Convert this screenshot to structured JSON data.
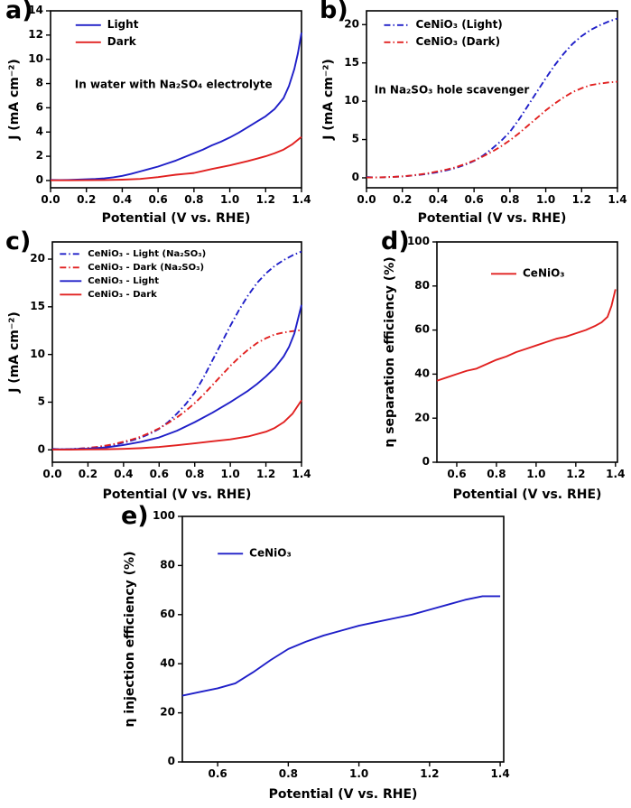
{
  "figure": {
    "background": "#ffffff",
    "palette": {
      "blue": "#1f1fc8",
      "red": "#e12120"
    },
    "axis_color": "#000000"
  },
  "chart_data": [
    {
      "id": "a",
      "panel_label": "a)",
      "type": "line",
      "xlabel": "Potential (V vs. RHE)",
      "ylabel": "J (mA cm⁻²)",
      "xlim": [
        0.0,
        1.4
      ],
      "ylim": [
        -0.6,
        14
      ],
      "xticks": [
        0.0,
        0.2,
        0.4,
        0.6,
        0.8,
        1.0,
        1.2,
        1.4
      ],
      "yticks": [
        0,
        2,
        4,
        6,
        8,
        10,
        12,
        14
      ],
      "xtick_decimals": 1,
      "margins": {
        "l": 52,
        "r": 12,
        "t": 10,
        "b": 46
      },
      "legend": {
        "x": 0.1,
        "y": 0.05,
        "font": 12,
        "line_height": 19,
        "sample": 28
      },
      "annotation": {
        "text": "In water with Na₂SO₄ electrolyte",
        "x": 0.49,
        "y": 0.58,
        "font": 12
      },
      "series": [
        {
          "name": "Light",
          "color": "blue",
          "style": "solid",
          "x": [
            0.0,
            0.05,
            0.1,
            0.15,
            0.2,
            0.25,
            0.3,
            0.35,
            0.4,
            0.45,
            0.5,
            0.55,
            0.6,
            0.65,
            0.7,
            0.75,
            0.8,
            0.85,
            0.9,
            0.95,
            1.0,
            1.05,
            1.1,
            1.15,
            1.2,
            1.25,
            1.3,
            1.33,
            1.36,
            1.38,
            1.4
          ],
          "y": [
            0.05,
            0.04,
            0.05,
            0.07,
            0.1,
            0.13,
            0.18,
            0.26,
            0.38,
            0.55,
            0.75,
            0.95,
            1.15,
            1.4,
            1.65,
            1.95,
            2.25,
            2.55,
            2.9,
            3.2,
            3.55,
            3.95,
            4.4,
            4.85,
            5.3,
            5.9,
            6.8,
            7.8,
            9.2,
            10.5,
            12.2
          ]
        },
        {
          "name": "Dark",
          "color": "red",
          "style": "solid",
          "x": [
            0.0,
            0.1,
            0.2,
            0.3,
            0.4,
            0.5,
            0.6,
            0.65,
            0.7,
            0.75,
            0.8,
            0.85,
            0.9,
            1.0,
            1.1,
            1.15,
            1.2,
            1.25,
            1.3,
            1.35,
            1.4
          ],
          "y": [
            0.02,
            0.02,
            0.03,
            0.04,
            0.07,
            0.13,
            0.28,
            0.38,
            0.48,
            0.55,
            0.62,
            0.78,
            0.95,
            1.25,
            1.6,
            1.8,
            2.0,
            2.25,
            2.55,
            3.0,
            3.6
          ]
        }
      ]
    },
    {
      "id": "b",
      "panel_label": "b)",
      "type": "line",
      "xlabel": "Potential (V vs. RHE)",
      "ylabel": "J (mA cm⁻²)",
      "xlim": [
        0.0,
        1.4
      ],
      "ylim": [
        -1.3,
        21.8
      ],
      "xticks": [
        0.0,
        0.2,
        0.4,
        0.6,
        0.8,
        1.0,
        1.2,
        1.4
      ],
      "yticks": [
        0,
        5,
        10,
        15,
        20
      ],
      "xtick_decimals": 1,
      "margins": {
        "l": 54,
        "r": 12,
        "t": 10,
        "b": 46
      },
      "legend": {
        "x": 0.07,
        "y": 0.05,
        "font": 12,
        "line_height": 19,
        "sample": 28
      },
      "annotation": {
        "text": "In Na₂SO₃ hole scavenger",
        "x": 0.34,
        "y": 0.55,
        "font": 12
      },
      "series": [
        {
          "name": "CeNiO₃ (Light)",
          "color": "blue",
          "style": "dashdot",
          "x": [
            0.0,
            0.05,
            0.1,
            0.15,
            0.2,
            0.25,
            0.3,
            0.35,
            0.4,
            0.45,
            0.5,
            0.55,
            0.6,
            0.65,
            0.7,
            0.75,
            0.8,
            0.85,
            0.9,
            0.95,
            1.0,
            1.05,
            1.1,
            1.15,
            1.2,
            1.25,
            1.3,
            1.35,
            1.4
          ],
          "y": [
            0.1,
            0.05,
            0.08,
            0.12,
            0.18,
            0.28,
            0.4,
            0.55,
            0.75,
            1.0,
            1.3,
            1.7,
            2.2,
            2.9,
            3.8,
            4.8,
            6.0,
            7.6,
            9.4,
            11.2,
            13.0,
            14.7,
            16.2,
            17.5,
            18.5,
            19.3,
            19.9,
            20.4,
            20.8
          ]
        },
        {
          "name": "CeNiO₃ (Dark)",
          "color": "red",
          "style": "dashdot",
          "x": [
            0.0,
            0.05,
            0.1,
            0.15,
            0.2,
            0.25,
            0.3,
            0.35,
            0.4,
            0.45,
            0.5,
            0.55,
            0.6,
            0.65,
            0.7,
            0.75,
            0.8,
            0.85,
            0.9,
            0.95,
            1.0,
            1.05,
            1.1,
            1.15,
            1.2,
            1.25,
            1.3,
            1.35,
            1.4
          ],
          "y": [
            0.05,
            0.05,
            0.08,
            0.12,
            0.2,
            0.3,
            0.45,
            0.62,
            0.85,
            1.1,
            1.4,
            1.8,
            2.25,
            2.8,
            3.4,
            4.1,
            4.9,
            5.8,
            6.8,
            7.8,
            8.8,
            9.7,
            10.5,
            11.2,
            11.7,
            12.1,
            12.3,
            12.45,
            12.55
          ]
        }
      ]
    },
    {
      "id": "c",
      "panel_label": "c)",
      "type": "line",
      "xlabel": "Potential (V vs. RHE)",
      "ylabel": "J (mA cm⁻²)",
      "xlim": [
        0.0,
        1.4
      ],
      "ylim": [
        -1.3,
        21.8
      ],
      "xticks": [
        0.0,
        0.2,
        0.4,
        0.6,
        0.8,
        1.0,
        1.2,
        1.4
      ],
      "yticks": [
        0,
        5,
        10,
        15,
        20
      ],
      "xtick_decimals": 1,
      "margins": {
        "l": 54,
        "r": 12,
        "t": 10,
        "b": 48
      },
      "legend": {
        "x": 0.03,
        "y": 0.03,
        "font": 10,
        "line_height": 15,
        "sample": 24
      },
      "series": [
        {
          "name": "CeNiO₃ - Light (Na₂SO₃)",
          "color": "blue",
          "style": "dashdot",
          "x": [
            0.0,
            0.05,
            0.1,
            0.15,
            0.2,
            0.25,
            0.3,
            0.35,
            0.4,
            0.45,
            0.5,
            0.55,
            0.6,
            0.65,
            0.7,
            0.75,
            0.8,
            0.85,
            0.9,
            0.95,
            1.0,
            1.05,
            1.1,
            1.15,
            1.2,
            1.25,
            1.3,
            1.35,
            1.4
          ],
          "y": [
            0.1,
            0.05,
            0.08,
            0.12,
            0.18,
            0.28,
            0.4,
            0.55,
            0.75,
            1.0,
            1.3,
            1.7,
            2.2,
            2.9,
            3.8,
            4.8,
            6.0,
            7.6,
            9.4,
            11.2,
            13.0,
            14.7,
            16.2,
            17.5,
            18.5,
            19.3,
            19.9,
            20.4,
            20.8
          ]
        },
        {
          "name": "CeNiO₃ - Dark (Na₂SO₃)",
          "color": "red",
          "style": "dashdot",
          "x": [
            0.0,
            0.05,
            0.1,
            0.15,
            0.2,
            0.25,
            0.3,
            0.35,
            0.4,
            0.45,
            0.5,
            0.55,
            0.6,
            0.65,
            0.7,
            0.75,
            0.8,
            0.85,
            0.9,
            0.95,
            1.0,
            1.05,
            1.1,
            1.15,
            1.2,
            1.25,
            1.3,
            1.35,
            1.4
          ],
          "y": [
            0.05,
            0.05,
            0.08,
            0.12,
            0.2,
            0.3,
            0.45,
            0.62,
            0.85,
            1.1,
            1.4,
            1.8,
            2.25,
            2.8,
            3.4,
            4.1,
            4.9,
            5.8,
            6.8,
            7.8,
            8.8,
            9.7,
            10.5,
            11.2,
            11.7,
            12.1,
            12.3,
            12.45,
            12.55
          ]
        },
        {
          "name": "CeNiO₃ - Light",
          "color": "blue",
          "style": "solid",
          "x": [
            0.0,
            0.1,
            0.2,
            0.3,
            0.4,
            0.5,
            0.6,
            0.7,
            0.8,
            0.9,
            1.0,
            1.05,
            1.1,
            1.15,
            1.2,
            1.25,
            1.3,
            1.33,
            1.36,
            1.4
          ],
          "y": [
            0.05,
            0.07,
            0.12,
            0.25,
            0.5,
            0.85,
            1.3,
            2.0,
            2.9,
            3.9,
            5.0,
            5.6,
            6.2,
            6.9,
            7.7,
            8.6,
            9.8,
            10.8,
            12.2,
            15.2
          ]
        },
        {
          "name": "CeNiO₃ - Dark",
          "color": "red",
          "style": "solid",
          "x": [
            0.0,
            0.1,
            0.2,
            0.3,
            0.4,
            0.5,
            0.6,
            0.7,
            0.8,
            0.9,
            1.0,
            1.1,
            1.2,
            1.25,
            1.3,
            1.35,
            1.4
          ],
          "y": [
            0.02,
            0.02,
            0.04,
            0.06,
            0.1,
            0.18,
            0.3,
            0.48,
            0.68,
            0.9,
            1.1,
            1.4,
            1.9,
            2.3,
            2.9,
            3.8,
            5.2
          ]
        }
      ]
    },
    {
      "id": "d",
      "panel_label": "d)",
      "type": "line",
      "xlabel": "Potential (V vs. RHE)",
      "ylabel": "η separation efficiency (%)",
      "xlim": [
        0.5,
        1.41
      ],
      "ylim": [
        0,
        100
      ],
      "xticks": [
        0.6,
        0.8,
        1.0,
        1.2,
        1.4
      ],
      "yticks": [
        0,
        20,
        40,
        60,
        80,
        100
      ],
      "xtick_decimals": 1,
      "margins": {
        "l": 64,
        "r": 12,
        "t": 10,
        "b": 48
      },
      "legend": {
        "x": 0.3,
        "y": 0.12,
        "font": 12,
        "line_height": 19,
        "sample": 28
      },
      "series": [
        {
          "name": "CeNiO₃",
          "color": "red",
          "style": "solid",
          "x": [
            0.5,
            0.55,
            0.6,
            0.65,
            0.7,
            0.75,
            0.8,
            0.85,
            0.9,
            0.95,
            1.0,
            1.05,
            1.1,
            1.15,
            1.2,
            1.25,
            1.3,
            1.33,
            1.36,
            1.38,
            1.4
          ],
          "y": [
            37.0,
            38.5,
            40.0,
            41.5,
            42.5,
            44.5,
            46.5,
            48.0,
            50.0,
            51.5,
            53.0,
            54.5,
            56.0,
            57.0,
            58.5,
            60.0,
            62.0,
            63.5,
            66.0,
            71.0,
            78.5
          ]
        }
      ]
    },
    {
      "id": "e",
      "panel_label": "e)",
      "type": "line",
      "xlabel": "Potential (V vs. RHE)",
      "ylabel": "η injection efficiency (%)",
      "xlim": [
        0.5,
        1.41
      ],
      "ylim": [
        0,
        100
      ],
      "xticks": [
        0.6,
        0.8,
        1.0,
        1.2,
        1.4
      ],
      "yticks": [
        0,
        20,
        40,
        60,
        80,
        100
      ],
      "xtick_decimals": 1,
      "margins": {
        "l": 70,
        "r": 14,
        "t": 10,
        "b": 48
      },
      "legend": {
        "x": 0.11,
        "y": 0.13,
        "font": 12,
        "line_height": 19,
        "sample": 28
      },
      "series": [
        {
          "name": "CeNiO₃",
          "color": "blue",
          "style": "solid",
          "x": [
            0.5,
            0.55,
            0.6,
            0.65,
            0.7,
            0.75,
            0.8,
            0.85,
            0.9,
            0.95,
            1.0,
            1.05,
            1.1,
            1.15,
            1.2,
            1.25,
            1.3,
            1.35,
            1.4
          ],
          "y": [
            27.0,
            28.5,
            30.0,
            32.0,
            36.5,
            41.5,
            46.0,
            49.0,
            51.5,
            53.5,
            55.5,
            57.0,
            58.5,
            60.0,
            62.0,
            64.0,
            66.0,
            67.5,
            67.5
          ]
        }
      ]
    }
  ]
}
